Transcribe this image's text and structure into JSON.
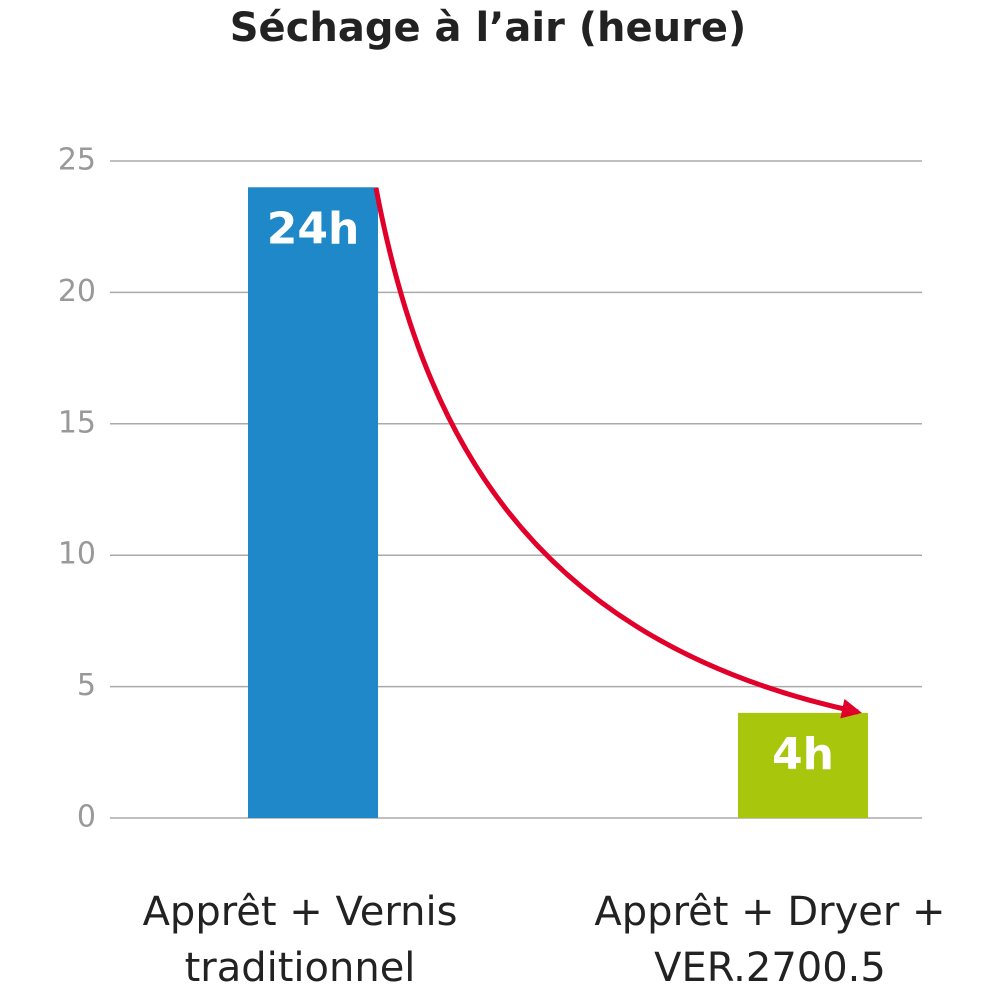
{
  "chart_data": {
    "type": "bar",
    "title": "Séchage à l’air (heure)",
    "categories": [
      "Apprêt + Vernis traditionnel",
      "Apprêt + Dryer + VER.2700.5"
    ],
    "values": [
      24,
      4
    ],
    "value_labels": [
      "24h",
      "4h"
    ],
    "colors": [
      "#1e88c8",
      "#a8c60c"
    ],
    "ylim": [
      0,
      25
    ],
    "yticks": [
      0,
      5,
      10,
      15,
      20,
      25
    ],
    "grid": true
  }
}
